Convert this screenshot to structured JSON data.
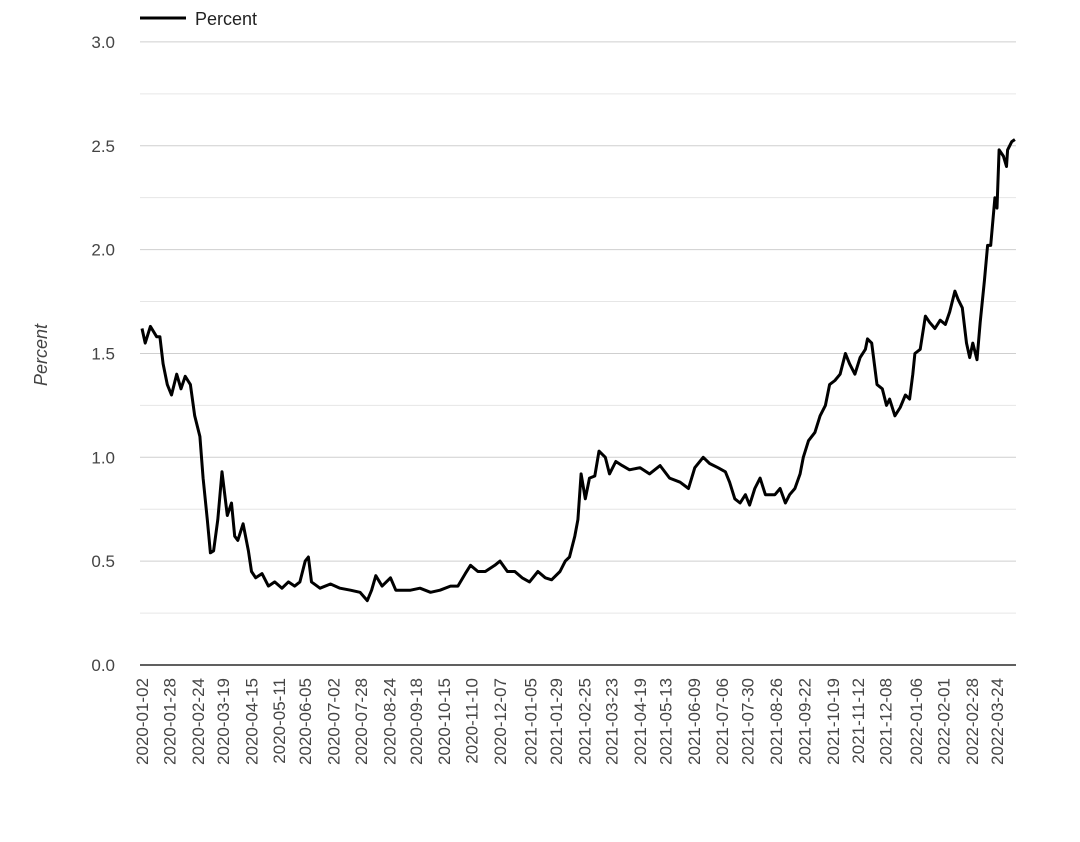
{
  "chart_data": {
    "type": "line",
    "title": "",
    "xlabel": "",
    "ylabel": "Percent",
    "ylim": [
      0,
      3.0
    ],
    "xlim": [
      "2020-01-02",
      "2022-04-10"
    ],
    "grid": true,
    "legend": "top-left",
    "line_color": "#000000",
    "y_ticks": [
      "0.0",
      "0.5",
      "1.0",
      "1.5",
      "2.0",
      "2.5",
      "3.0"
    ],
    "x_ticks": [
      "2020-01-02",
      "2020-01-28",
      "2020-02-24",
      "2020-03-19",
      "2020-04-15",
      "2020-05-11",
      "2020-06-05",
      "2020-07-02",
      "2020-07-28",
      "2020-08-24",
      "2020-09-18",
      "2020-10-15",
      "2020-11-10",
      "2020-12-07",
      "2021-01-05",
      "2021-01-29",
      "2021-02-25",
      "2021-03-23",
      "2021-04-19",
      "2021-05-13",
      "2021-06-09",
      "2021-07-06",
      "2021-07-30",
      "2021-08-26",
      "2021-09-22",
      "2021-10-19",
      "2021-11-12",
      "2021-12-08",
      "2022-01-06",
      "2022-02-01",
      "2022-02-28",
      "2022-03-24"
    ],
    "series": [
      {
        "name": "Percent",
        "x": [
          "2020-01-02",
          "2020-01-05",
          "2020-01-10",
          "2020-01-16",
          "2020-01-19",
          "2020-01-22",
          "2020-01-26",
          "2020-01-30",
          "2020-02-04",
          "2020-02-08",
          "2020-02-12",
          "2020-02-17",
          "2020-02-21",
          "2020-02-26",
          "2020-02-29",
          "2020-03-04",
          "2020-03-07",
          "2020-03-10",
          "2020-03-14",
          "2020-03-18",
          "2020-03-23",
          "2020-03-27",
          "2020-03-30",
          "2020-04-02",
          "2020-04-07",
          "2020-04-12",
          "2020-04-15",
          "2020-04-19",
          "2020-04-25",
          "2020-05-01",
          "2020-05-07",
          "2020-05-14",
          "2020-05-20",
          "2020-05-26",
          "2020-05-31",
          "2020-06-05",
          "2020-06-08",
          "2020-06-11",
          "2020-06-19",
          "2020-06-29",
          "2020-07-08",
          "2020-07-18",
          "2020-07-27",
          "2020-08-03",
          "2020-08-07",
          "2020-08-11",
          "2020-08-17",
          "2020-08-25",
          "2020-08-30",
          "2020-09-13",
          "2020-09-22",
          "2020-10-02",
          "2020-10-11",
          "2020-10-21",
          "2020-10-28",
          "2020-11-04",
          "2020-11-09",
          "2020-11-16",
          "2020-11-23",
          "2020-12-02",
          "2020-12-07",
          "2020-12-14",
          "2020-12-21",
          "2020-12-28",
          "2021-01-04",
          "2021-01-12",
          "2021-01-19",
          "2021-01-25",
          "2021-02-02",
          "2021-02-07",
          "2021-02-11",
          "2021-02-16",
          "2021-02-19",
          "2021-02-22",
          "2021-02-26",
          "2021-03-02",
          "2021-03-07",
          "2021-03-11",
          "2021-03-17",
          "2021-03-21",
          "2021-03-27",
          "2021-04-02",
          "2021-04-09",
          "2021-04-19",
          "2021-04-28",
          "2021-05-08",
          "2021-05-17",
          "2021-05-27",
          "2021-06-04",
          "2021-06-10",
          "2021-06-18",
          "2021-06-24",
          "2021-07-02",
          "2021-07-09",
          "2021-07-13",
          "2021-07-18",
          "2021-07-23",
          "2021-07-28",
          "2021-08-01",
          "2021-08-06",
          "2021-08-11",
          "2021-08-16",
          "2021-08-25",
          "2021-08-30",
          "2021-09-04",
          "2021-09-08",
          "2021-09-13",
          "2021-09-18",
          "2021-09-21",
          "2021-09-26",
          "2021-10-02",
          "2021-10-07",
          "2021-10-12",
          "2021-10-16",
          "2021-10-21",
          "2021-10-26",
          "2021-10-31",
          "2021-11-04",
          "2021-11-09",
          "2021-11-14",
          "2021-11-19",
          "2021-11-21",
          "2021-11-25",
          "2021-11-30",
          "2021-12-05",
          "2021-12-09",
          "2021-12-12",
          "2021-12-17",
          "2021-12-22",
          "2021-12-27",
          "2021-12-31",
          "2022-01-03",
          "2022-01-05",
          "2022-01-10",
          "2022-01-15",
          "2022-01-19",
          "2022-01-24",
          "2022-01-29",
          "2022-02-03",
          "2022-02-07",
          "2022-02-12",
          "2022-02-15",
          "2022-02-19",
          "2022-02-23",
          "2022-02-26",
          "2022-03-01",
          "2022-03-05",
          "2022-03-08",
          "2022-03-12",
          "2022-03-15",
          "2022-03-18",
          "2022-03-22",
          "2022-03-24",
          "2022-03-26",
          "2022-03-30",
          "2022-04-02",
          "2022-04-03",
          "2022-04-07",
          "2022-04-10"
        ],
        "y": [
          1.62,
          1.55,
          1.63,
          1.58,
          1.58,
          1.45,
          1.35,
          1.3,
          1.4,
          1.33,
          1.39,
          1.35,
          1.2,
          1.1,
          0.9,
          0.7,
          0.54,
          0.55,
          0.7,
          0.93,
          0.72,
          0.78,
          0.62,
          0.6,
          0.68,
          0.55,
          0.45,
          0.42,
          0.44,
          0.38,
          0.4,
          0.37,
          0.4,
          0.38,
          0.4,
          0.5,
          0.52,
          0.4,
          0.37,
          0.39,
          0.37,
          0.36,
          0.35,
          0.31,
          0.36,
          0.43,
          0.38,
          0.42,
          0.36,
          0.36,
          0.37,
          0.35,
          0.36,
          0.38,
          0.38,
          0.44,
          0.48,
          0.45,
          0.45,
          0.48,
          0.5,
          0.45,
          0.45,
          0.42,
          0.4,
          0.45,
          0.42,
          0.41,
          0.45,
          0.5,
          0.52,
          0.62,
          0.7,
          0.92,
          0.8,
          0.9,
          0.91,
          1.03,
          1.0,
          0.92,
          0.98,
          0.96,
          0.94,
          0.95,
          0.92,
          0.96,
          0.9,
          0.88,
          0.85,
          0.95,
          1.0,
          0.97,
          0.95,
          0.93,
          0.88,
          0.8,
          0.78,
          0.82,
          0.77,
          0.85,
          0.9,
          0.82,
          0.82,
          0.85,
          0.78,
          0.82,
          0.85,
          0.92,
          1.0,
          1.08,
          1.12,
          1.2,
          1.25,
          1.35,
          1.37,
          1.4,
          1.5,
          1.45,
          1.4,
          1.48,
          1.52,
          1.57,
          1.55,
          1.35,
          1.33,
          1.25,
          1.28,
          1.2,
          1.24,
          1.3,
          1.28,
          1.4,
          1.5,
          1.52,
          1.68,
          1.65,
          1.62,
          1.66,
          1.64,
          1.7,
          1.8,
          1.76,
          1.72,
          1.55,
          1.48,
          1.55,
          1.47,
          1.65,
          1.85,
          2.02,
          2.02,
          2.25,
          2.2,
          2.48,
          2.45,
          2.4,
          2.48,
          2.52,
          2.53
        ]
      }
    ]
  }
}
